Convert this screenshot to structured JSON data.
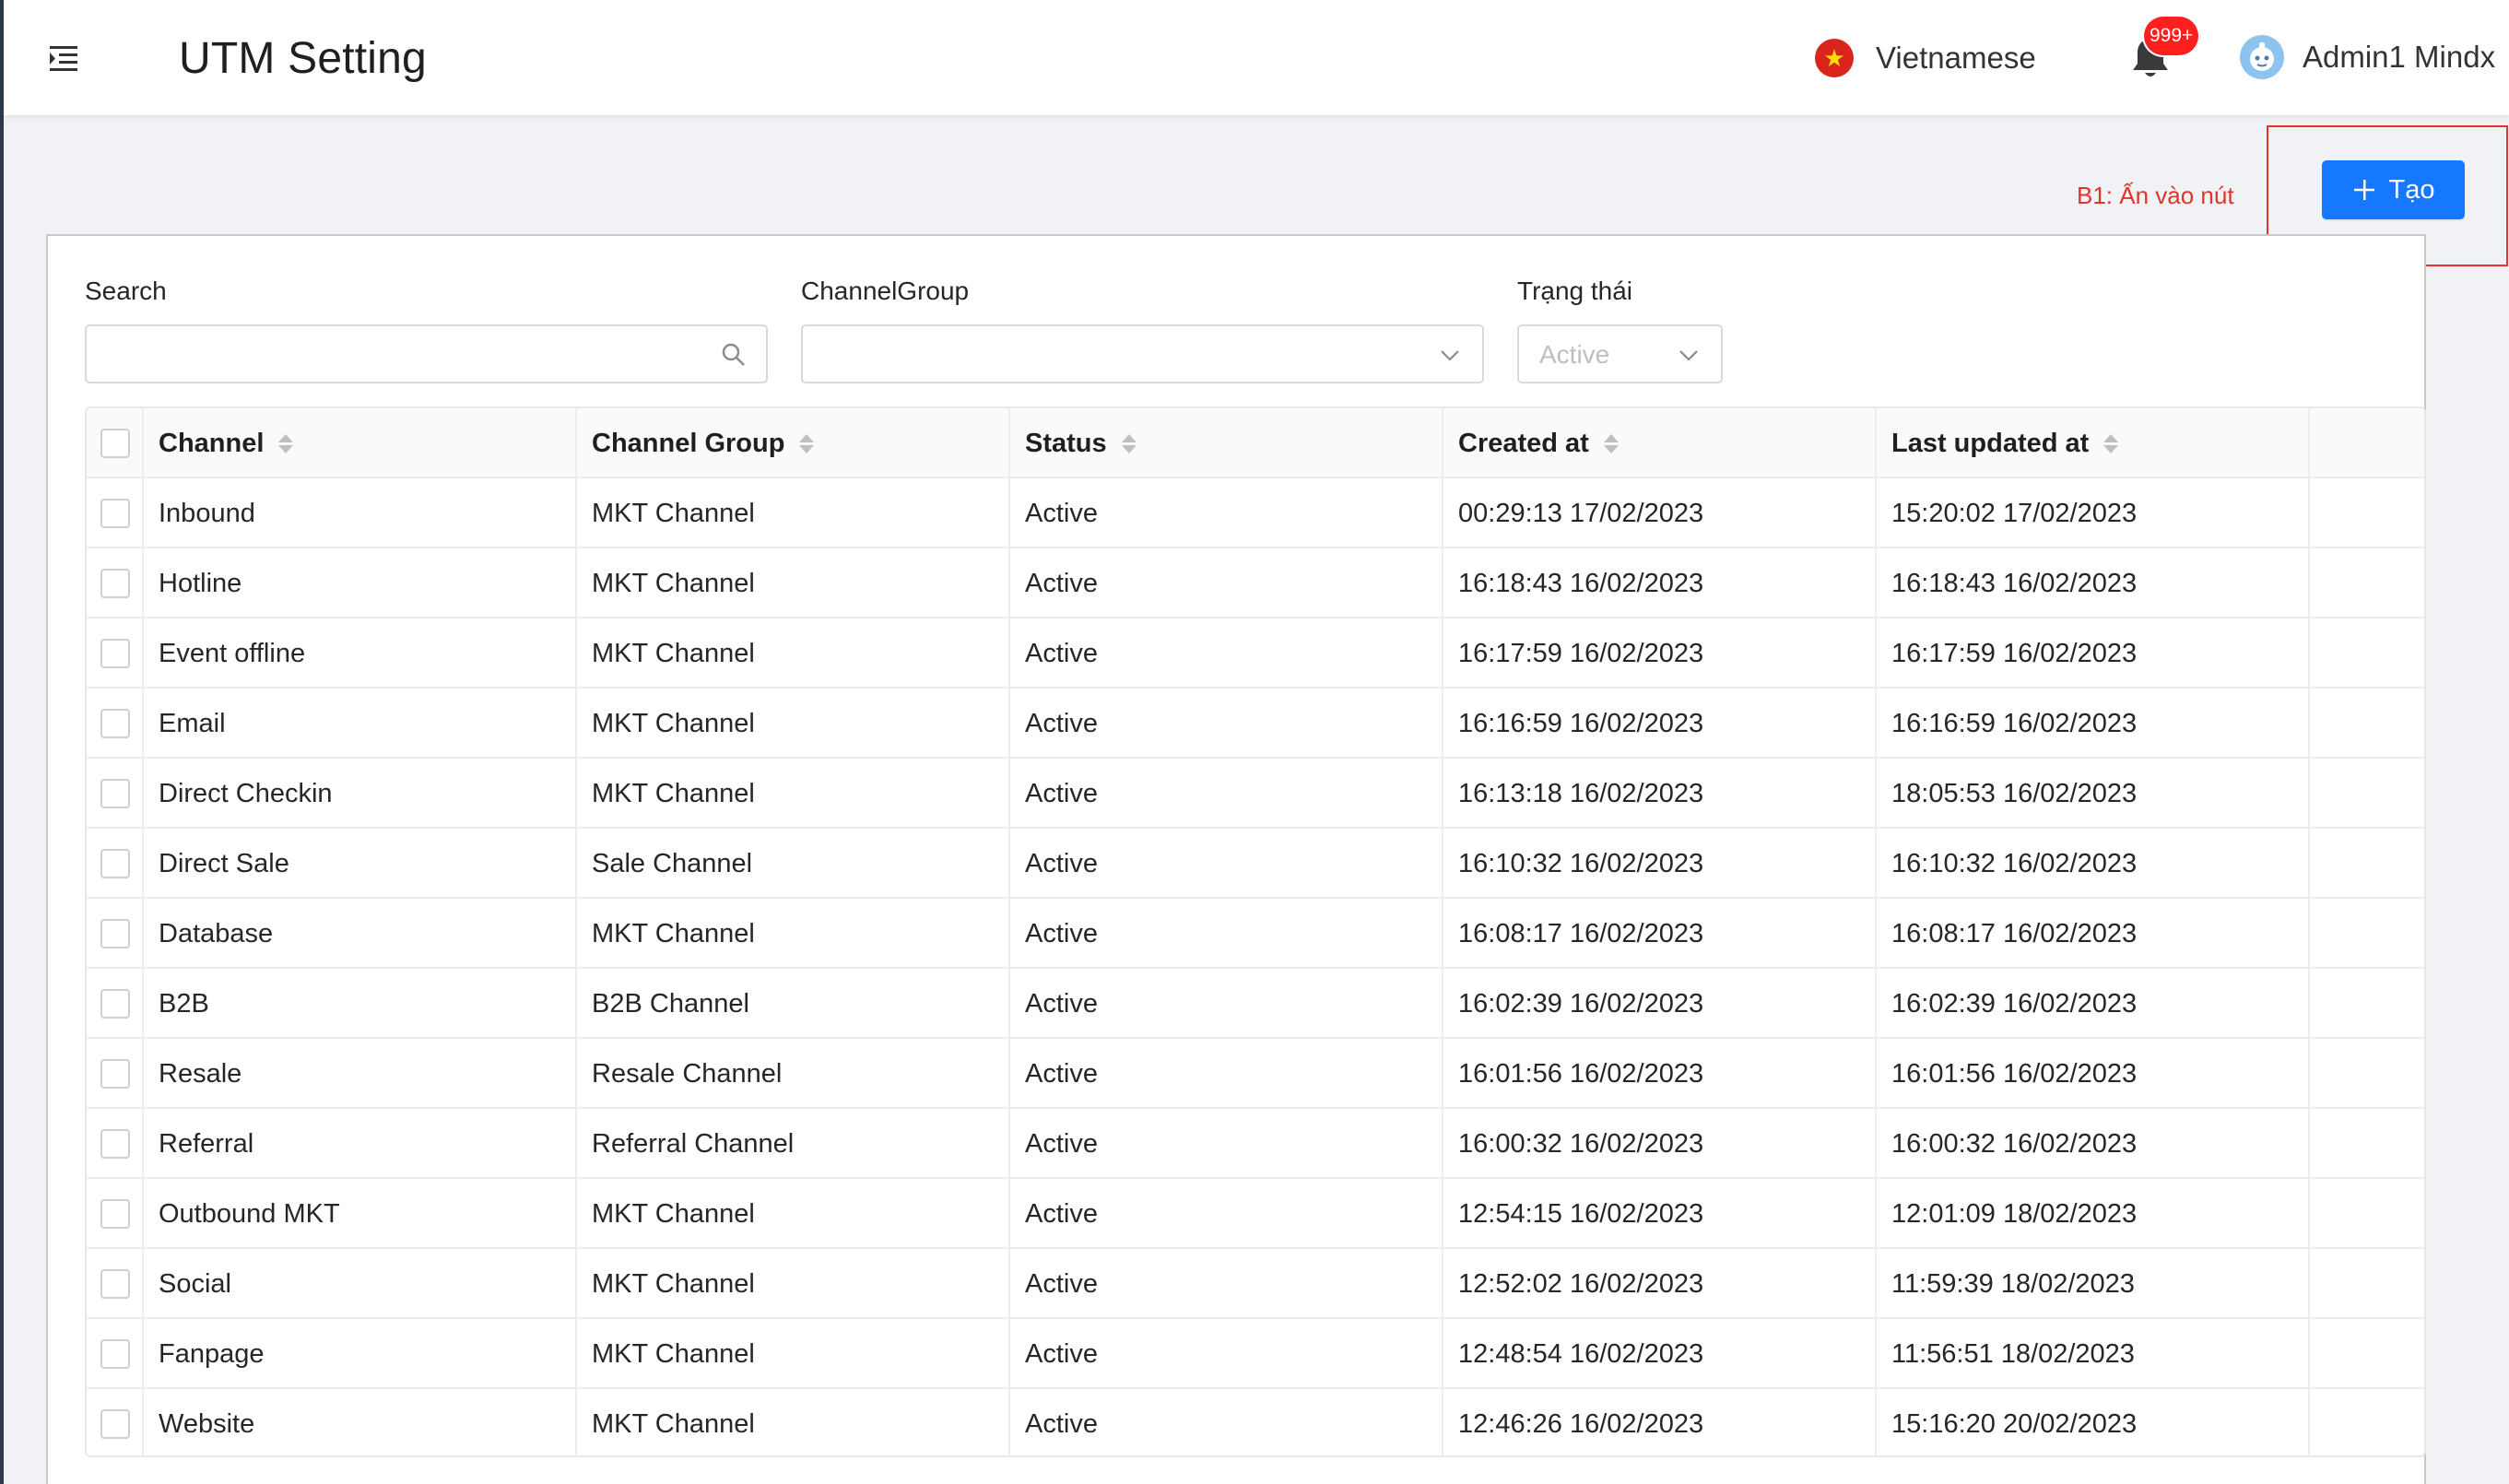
{
  "header": {
    "title": "UTM Setting",
    "language": "Vietnamese",
    "notification_count": "999+",
    "user_name": "Admin1 Mindx"
  },
  "annotation": {
    "text": "B1: Ấn vào nút"
  },
  "actions": {
    "create_label": "Tạo"
  },
  "filters": {
    "search_label": "Search",
    "search_value": "",
    "channel_group_label": "ChannelGroup",
    "channel_group_value": "",
    "status_label": "Trạng thái",
    "status_value": "Active"
  },
  "table": {
    "columns": [
      "Channel",
      "Channel Group",
      "Status",
      "Created at",
      "Last updated at"
    ],
    "rows": [
      [
        "Inbound",
        "MKT Channel",
        "Active",
        "00:29:13 17/02/2023",
        "15:20:02 17/02/2023"
      ],
      [
        "Hotline",
        "MKT Channel",
        "Active",
        "16:18:43 16/02/2023",
        "16:18:43 16/02/2023"
      ],
      [
        "Event offline",
        "MKT Channel",
        "Active",
        "16:17:59 16/02/2023",
        "16:17:59 16/02/2023"
      ],
      [
        "Email",
        "MKT Channel",
        "Active",
        "16:16:59 16/02/2023",
        "16:16:59 16/02/2023"
      ],
      [
        "Direct Checkin",
        "MKT Channel",
        "Active",
        "16:13:18 16/02/2023",
        "18:05:53 16/02/2023"
      ],
      [
        "Direct Sale",
        "Sale Channel",
        "Active",
        "16:10:32 16/02/2023",
        "16:10:32 16/02/2023"
      ],
      [
        "Database",
        "MKT Channel",
        "Active",
        "16:08:17 16/02/2023",
        "16:08:17 16/02/2023"
      ],
      [
        "B2B",
        "B2B Channel",
        "Active",
        "16:02:39 16/02/2023",
        "16:02:39 16/02/2023"
      ],
      [
        "Resale",
        "Resale Channel",
        "Active",
        "16:01:56 16/02/2023",
        "16:01:56 16/02/2023"
      ],
      [
        "Referral",
        "Referral Channel",
        "Active",
        "16:00:32 16/02/2023",
        "16:00:32 16/02/2023"
      ],
      [
        "Outbound MKT",
        "MKT Channel",
        "Active",
        "12:54:15 16/02/2023",
        "12:01:09 18/02/2023"
      ],
      [
        "Social",
        "MKT Channel",
        "Active",
        "12:52:02 16/02/2023",
        "11:59:39 18/02/2023"
      ],
      [
        "Fanpage",
        "MKT Channel",
        "Active",
        "12:48:54 16/02/2023",
        "11:56:51 18/02/2023"
      ],
      [
        "Website",
        "MKT Channel",
        "Active",
        "12:46:26 16/02/2023",
        "15:16:20 20/02/2023"
      ]
    ]
  },
  "icons": {
    "menu": "menu-fold-icon",
    "flag": "vietnam-flag-icon",
    "bell": "bell-icon",
    "avatar": "avatar-icon",
    "plus": "plus-icon",
    "search": "search-icon",
    "chevron": "chevron-down-icon",
    "sort": "sort-icon"
  },
  "colors": {
    "primary": "#1677ff",
    "annotation": "#e0352b",
    "badge": "#ff1f1f"
  }
}
